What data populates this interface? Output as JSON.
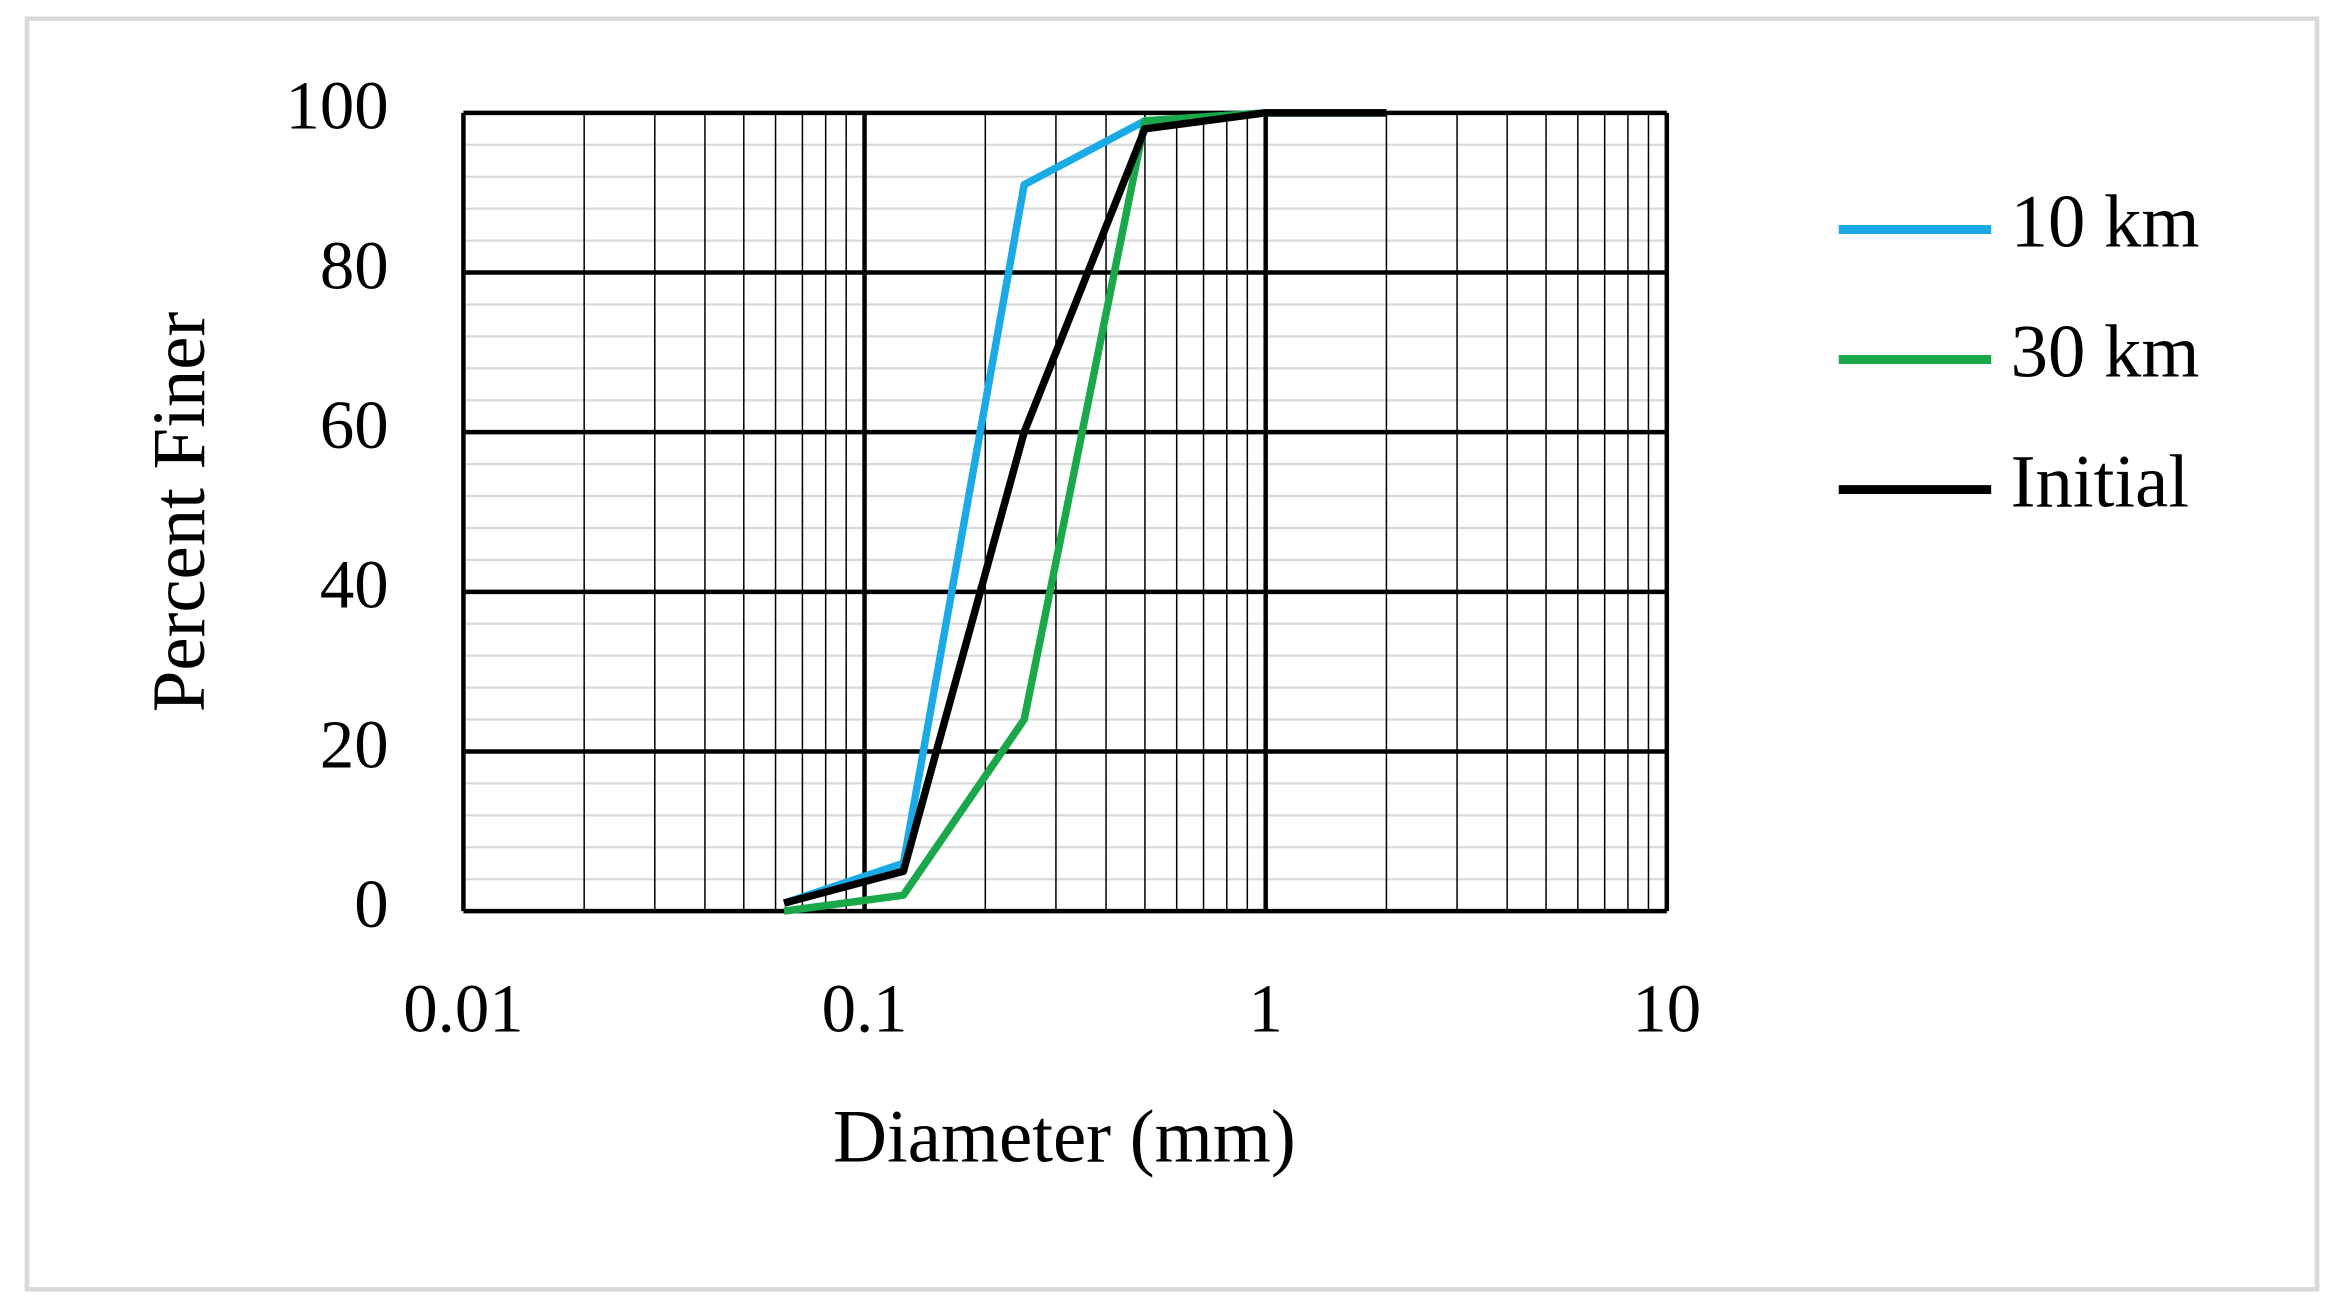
{
  "chart_data": {
    "type": "line",
    "x_label": "Diameter (mm)",
    "y_label": "Percent Finer",
    "x": [
      0.063,
      0.125,
      0.25,
      0.5,
      1,
      2
    ],
    "series": [
      {
        "name": "10 km",
        "color": "#1aabe6",
        "values": [
          1,
          6,
          91,
          99,
          100,
          100
        ]
      },
      {
        "name": "30 km",
        "color": "#1aa84a",
        "values": [
          0,
          2,
          24,
          99,
          100,
          100
        ]
      },
      {
        "name": "Initial",
        "color": "#000000",
        "values": [
          1,
          5,
          60,
          98,
          100,
          100
        ]
      }
    ],
    "xlim": [
      0.01,
      10
    ],
    "xticks": [
      0.01,
      0.1,
      1,
      10
    ],
    "xscale": "log",
    "ylim": [
      0,
      100
    ],
    "yticks": [
      0,
      20,
      40,
      60,
      80,
      100
    ],
    "grid": true,
    "legend": "right"
  }
}
